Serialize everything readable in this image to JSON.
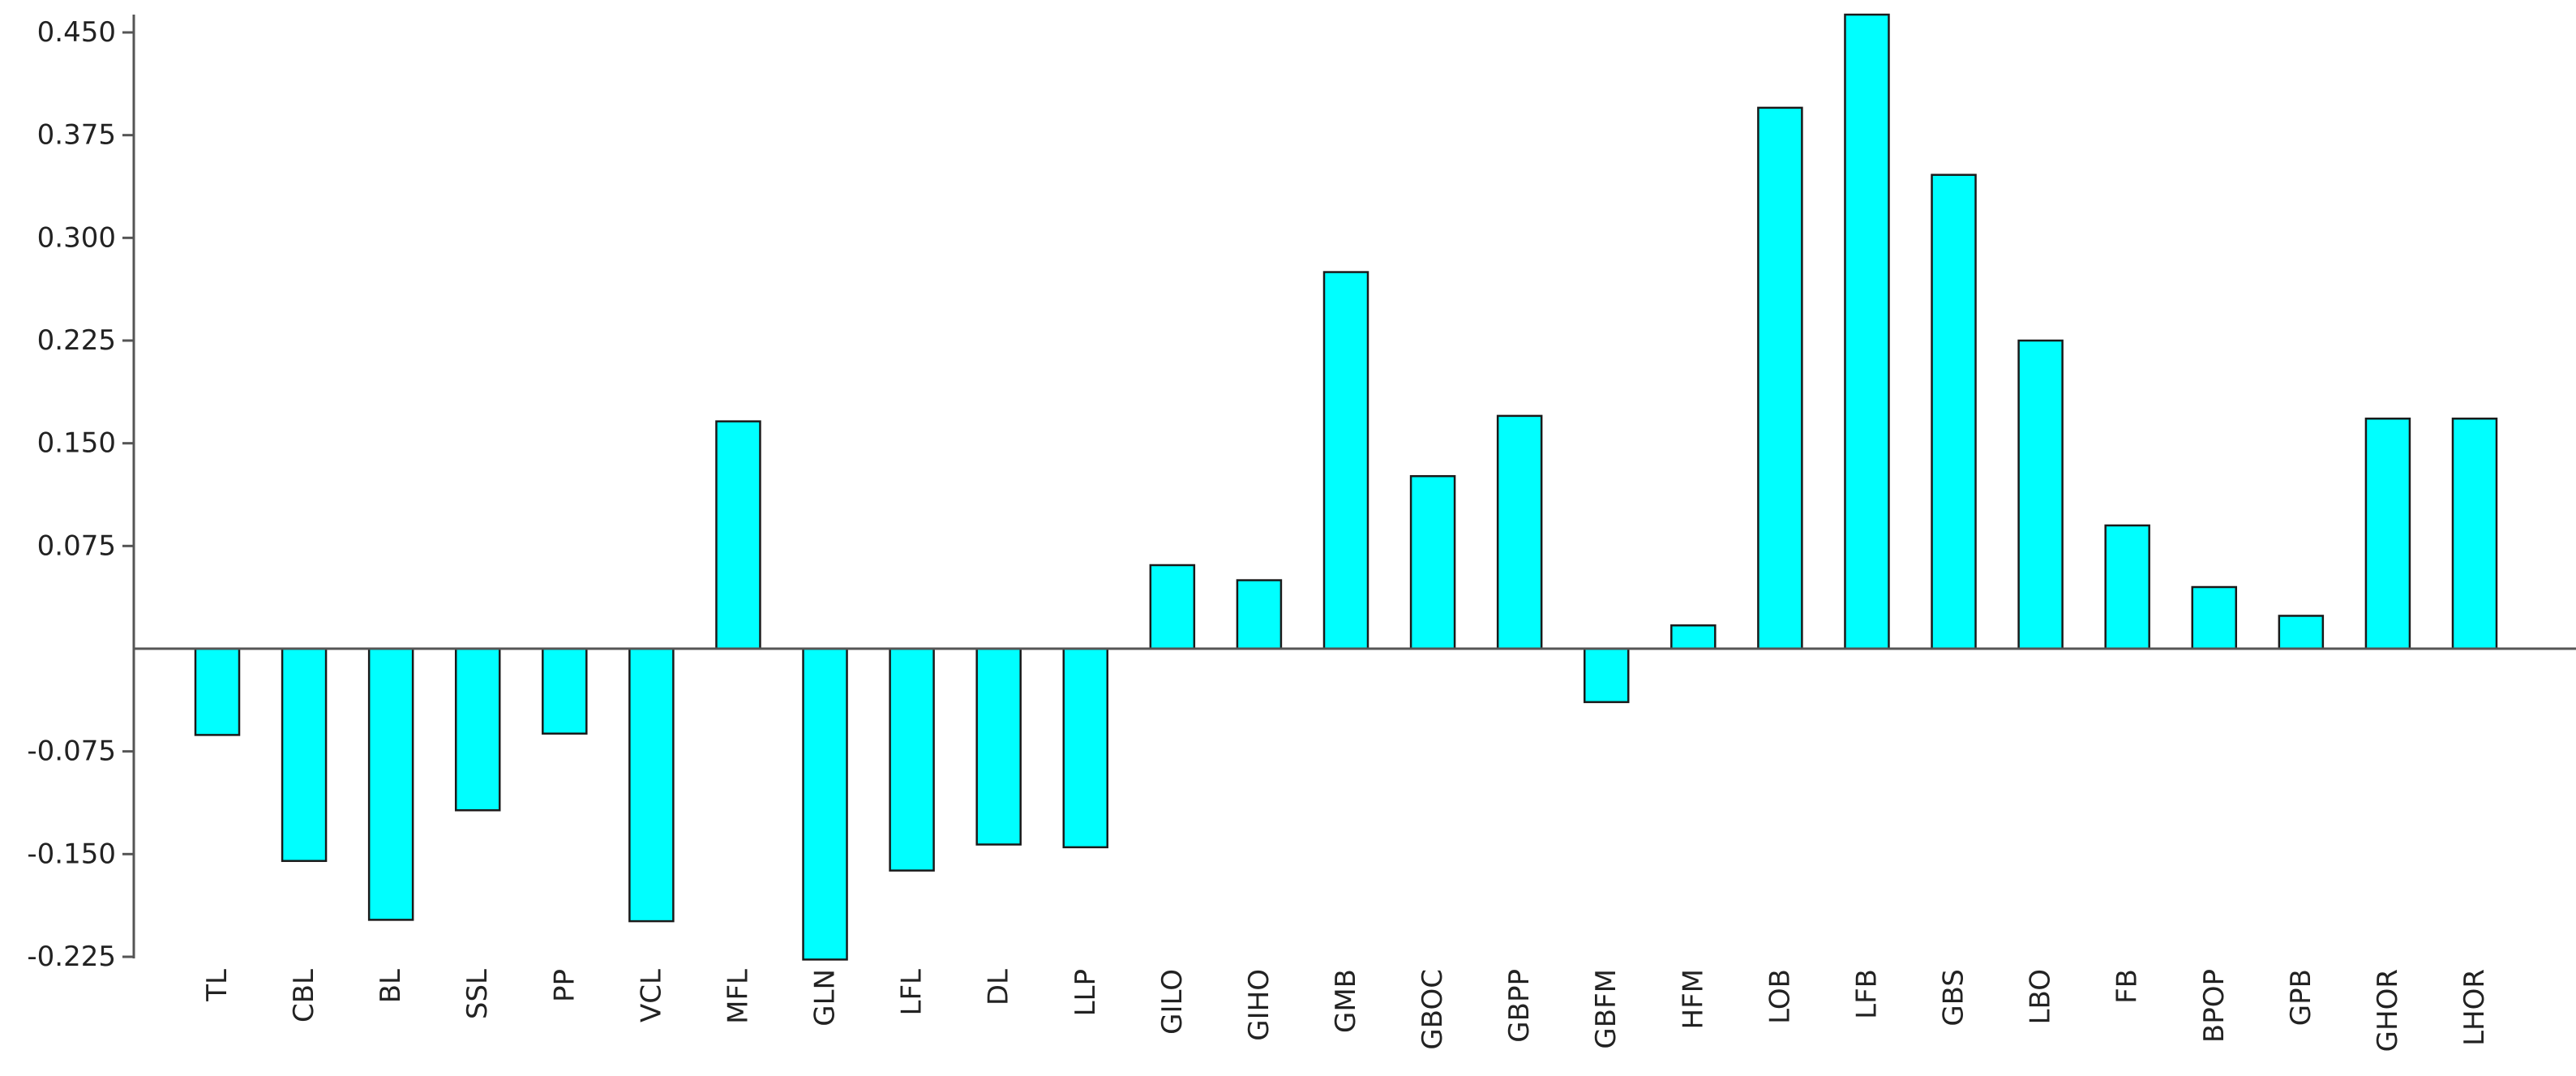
{
  "colors": {
    "bar_fill": "#00ffff",
    "bar_stroke": "#1a1a1a",
    "axis": "#555555",
    "text": "#222222",
    "background": "#ffffff"
  },
  "chart_data": {
    "type": "bar",
    "title": "",
    "xlabel": "",
    "ylabel": "",
    "grid": false,
    "legend": "none",
    "ylim": [
      -0.225,
      0.45
    ],
    "yticks": [
      0.45,
      0.375,
      0.3,
      0.225,
      0.15,
      0.075,
      -0.075,
      -0.15,
      -0.225
    ],
    "ytick_labels": [
      "0.450",
      "0.375",
      "0.300",
      "0.225",
      "0.150",
      "0.075",
      "-0.075",
      "-0.150",
      "-0.225"
    ],
    "categories": [
      "TL",
      "CBL",
      "BL",
      "SSL",
      "PP",
      "VCL",
      "MFL",
      "GLN",
      "LFL",
      "DL",
      "LLP",
      "GILO",
      "GIHO",
      "GMB",
      "GBOC",
      "GBPP",
      "GBFM",
      "HFM",
      "LOB",
      "LFB",
      "GBS",
      "LBO",
      "FB",
      "BPOP",
      "GPB",
      "GHOR",
      "LHOR"
    ],
    "values": [
      -0.063,
      -0.155,
      -0.198,
      -0.118,
      -0.062,
      -0.199,
      0.166,
      -0.227,
      -0.162,
      -0.143,
      -0.145,
      0.061,
      0.05,
      0.275,
      0.126,
      0.17,
      -0.039,
      0.017,
      0.395,
      0.463,
      0.346,
      0.225,
      0.09,
      0.045,
      0.024,
      0.168,
      0.168
    ]
  }
}
